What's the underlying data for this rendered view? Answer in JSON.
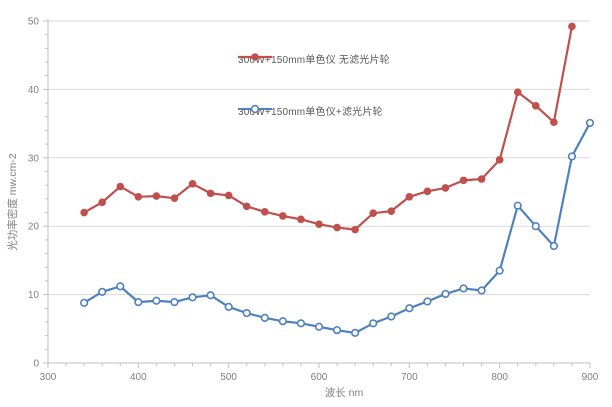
{
  "colors": {
    "series_red": "#c0504d",
    "series_blue": "#4f81bd",
    "gridline": "#d9d9d9",
    "axis_line": "#bfbfbf",
    "tick_text": "#7f7f7f",
    "legend_text": "#595959"
  },
  "chart_data": {
    "type": "line",
    "title": "",
    "xlabel": "波长 nm",
    "ylabel": "光功率密度   mw.cm-2",
    "xlim": [
      300,
      900
    ],
    "ylim": [
      0,
      50
    ],
    "x_ticks": [
      300,
      400,
      500,
      600,
      700,
      800,
      900
    ],
    "y_ticks": [
      0,
      10,
      20,
      30,
      40,
      50
    ],
    "x_minor_step": 20,
    "y_minor_step": 2,
    "grid": "horizontal gridlines only",
    "legend_position": "inside plot, upper middle",
    "series": [
      {
        "name": "300W+150mm单色仪  无滤光片轮",
        "color": "#c0504d",
        "marker": "filled-circle",
        "x": [
          340,
          360,
          380,
          400,
          420,
          440,
          460,
          480,
          500,
          520,
          540,
          560,
          580,
          600,
          620,
          640,
          660,
          680,
          700,
          720,
          740,
          760,
          780,
          800,
          820,
          840,
          860,
          880
        ],
        "values": [
          22.0,
          23.5,
          25.8,
          24.3,
          24.4,
          24.1,
          26.2,
          24.8,
          24.5,
          22.9,
          22.1,
          21.5,
          21.0,
          20.3,
          19.8,
          19.5,
          21.9,
          22.2,
          24.3,
          25.1,
          25.6,
          26.7,
          26.9,
          29.7,
          39.6,
          37.6,
          35.2,
          49.2
        ]
      },
      {
        "name": "300W+150mm单色仪+滤光片轮",
        "color": "#4f81bd",
        "marker": "open-circle",
        "x": [
          340,
          360,
          380,
          400,
          420,
          440,
          460,
          480,
          500,
          520,
          540,
          560,
          580,
          600,
          620,
          640,
          660,
          680,
          700,
          720,
          740,
          760,
          780,
          800,
          820,
          840,
          860,
          880,
          900
        ],
        "values": [
          8.8,
          10.4,
          11.2,
          8.9,
          9.1,
          8.9,
          9.6,
          9.9,
          8.2,
          7.3,
          6.6,
          6.1,
          5.8,
          5.3,
          4.8,
          4.4,
          5.8,
          6.8,
          8.0,
          9.0,
          10.1,
          10.9,
          10.6,
          13.5,
          23.0,
          20.0,
          17.1,
          30.2,
          35.1
        ]
      }
    ]
  }
}
